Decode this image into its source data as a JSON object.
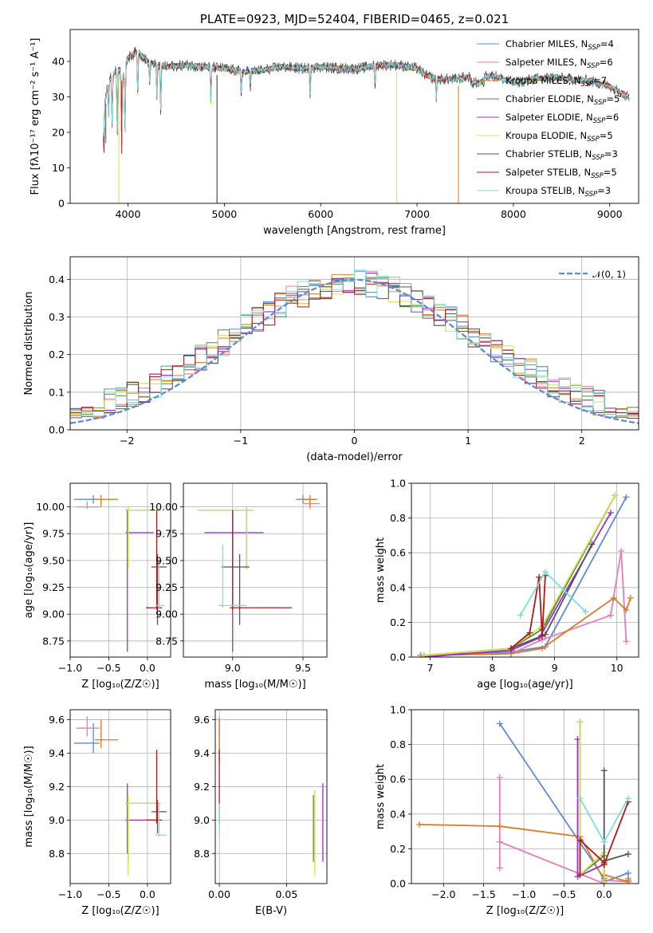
{
  "colors": {
    "chabrier_miles": "#5b8bd8",
    "salpeter_miles": "#e27fb8",
    "kroupa_miles": "#e07a20",
    "chabrier_elodie": "#4e8a3e",
    "salpeter_elodie": "#9b30c8",
    "kroupa_elodie": "#d4e04a",
    "chabrier_stelib": "#555555",
    "salpeter_stelib": "#b01818",
    "kroupa_stelib": "#7fdde0",
    "normal": "#5b8bd8"
  },
  "chart_data": [
    {
      "id": "spectrum",
      "type": "line",
      "title": "PLATE=0923, MJD=52404, FIBERID=0465, z=0.021",
      "xlabel": "wavelength [Angstrom, rest frame]",
      "ylabel": "Flux [fλ10⁻¹⁷ erg cm⁻² s⁻¹ A⁻¹]",
      "xlim": [
        3400,
        9300
      ],
      "ylim": [
        0,
        49
      ],
      "xticks": [
        "4000",
        "5000",
        "6000",
        "7000",
        "8000",
        "9000"
      ],
      "yticks": [
        "0",
        "10",
        "20",
        "30",
        "40"
      ],
      "legend_position": "top-right",
      "series": [
        {
          "name": "Chabrier MILES, N_SSP=4",
          "color_key": "chabrier_miles"
        },
        {
          "name": "Salpeter MILES, N_SSP=6",
          "color_key": "salpeter_miles"
        },
        {
          "name": "Kroupa MILES, N_SSP=7",
          "color_key": "kroupa_miles"
        },
        {
          "name": "Chabrier ELODIE, N_SSP=5",
          "color_key": "chabrier_elodie"
        },
        {
          "name": "Salpeter ELODIE, N_SSP=6",
          "color_key": "salpeter_elodie"
        },
        {
          "name": "Kroupa ELODIE, N_SSP=5",
          "color_key": "kroupa_elodie"
        },
        {
          "name": "Chabrier STELIB, N_SSP=3",
          "color_key": "chabrier_stelib"
        },
        {
          "name": "Salpeter STELIB, N_SSP=5",
          "color_key": "salpeter_stelib"
        },
        {
          "name": "Kroupa STELIB, N_SSP=3",
          "color_key": "kroupa_stelib"
        }
      ],
      "continuum_knots": {
        "x": [
          3740,
          3800,
          3900,
          3950,
          4000,
          4100,
          4200,
          4300,
          4400,
          4600,
          4800,
          5000,
          5200,
          5400,
          5600,
          5800,
          6000,
          6200,
          6400,
          6600,
          6800,
          7000,
          7100,
          7200,
          7400,
          7600,
          7800,
          8000,
          8200,
          8400,
          8600,
          8800,
          9000,
          9200
        ],
        "y": [
          25,
          35,
          38,
          36,
          41,
          43,
          40,
          39,
          38.5,
          39,
          38.5,
          38,
          37,
          37.5,
          38.5,
          38,
          38.5,
          38,
          38,
          39,
          39,
          38,
          36,
          35,
          35,
          36,
          36,
          34,
          35,
          35.5,
          35,
          34.5,
          33,
          30
        ]
      },
      "absorption_features": {
        "x": [
          3750,
          3800,
          3835,
          3889,
          3934,
          3969,
          4101,
          4226,
          4300,
          4340,
          4861,
          5175,
          5270,
          5890,
          6563,
          7200
        ],
        "depth": [
          12,
          10,
          14,
          18,
          20,
          18,
          12,
          6,
          9,
          13,
          10,
          6,
          4,
          8,
          6,
          5
        ]
      },
      "artifacts": [
        {
          "x": 3905,
          "y_min": 0,
          "color_key": "kroupa_elodie"
        },
        {
          "x": 4920,
          "y_min": 0,
          "color_key": "kroupa_stelib"
        },
        {
          "x": 4925,
          "y_min": 0,
          "color_key": "chabrier_stelib"
        },
        {
          "x": 6790,
          "y_min": 0,
          "color_key": "kroupa_elodie"
        },
        {
          "x": 7430,
          "y_min": 0,
          "color_key": "kroupa_miles"
        },
        {
          "x": 3750,
          "y_min": 19,
          "color_key": "kroupa_stelib"
        },
        {
          "x": 3770,
          "y_min": 17,
          "color_key": "chabrier_stelib"
        },
        {
          "x": 3935,
          "y_min": 14,
          "color_key": "salpeter_stelib"
        }
      ]
    },
    {
      "id": "residuals",
      "type": "histogram",
      "xlabel": "(data-model)/error",
      "ylabel": "Normed distribution",
      "xlim": [
        -2.5,
        2.5
      ],
      "ylim": [
        0,
        0.46
      ],
      "xticks": [
        "−2",
        "−1",
        "0",
        "1",
        "2"
      ],
      "yticks": [
        "0.0",
        "0.1",
        "0.2",
        "0.3",
        "0.4"
      ],
      "grid": true,
      "legend_position": "top-right",
      "normal_label": "𝒩(0, 1)",
      "bin_width": 0.1,
      "bin_start": -2.5
    },
    {
      "id": "age-vs-Z",
      "type": "errorbar",
      "xlabel": "Z [log₁₀(Z/Z☉)]",
      "ylabel": "age  [log₁₀(age/yr)]",
      "xlim": [
        -1.0,
        0.3
      ],
      "ylim": [
        8.6,
        10.22
      ],
      "xticks": [
        "−1.0",
        "−0.5",
        "0.0"
      ],
      "yticks": [
        "8.75",
        "9.00",
        "9.25",
        "9.50",
        "9.75",
        "10.00"
      ],
      "grid": true,
      "points": [
        {
          "color_key": "chabrier_miles",
          "x": -0.7,
          "x_lo": -0.95,
          "x_hi": -0.62,
          "y": 10.07,
          "y_lo": 10.03,
          "y_hi": 10.11
        },
        {
          "color_key": "salpeter_miles",
          "x": -0.78,
          "x_lo": -0.92,
          "x_hi": -0.62,
          "y": 10.0,
          "y_lo": 9.98,
          "y_hi": 10.05
        },
        {
          "color_key": "kroupa_miles",
          "x": -0.6,
          "x_lo": -0.68,
          "x_hi": -0.38,
          "y": 10.07,
          "y_lo": 10.0,
          "y_hi": 10.11
        },
        {
          "color_key": "chabrier_elodie",
          "x": -0.25,
          "x_lo": -0.28,
          "x_hi": 0.17,
          "y": 9.97,
          "y_lo": 9.42,
          "y_hi": 10.0
        },
        {
          "color_key": "salpeter_elodie",
          "x": -0.26,
          "x_lo": -0.28,
          "x_hi": 0.08,
          "y": 9.76,
          "y_lo": 8.65,
          "y_hi": 9.97
        },
        {
          "color_key": "kroupa_elodie",
          "x": -0.25,
          "x_lo": -0.27,
          "x_hi": 0.17,
          "y": 9.97,
          "y_lo": 9.42,
          "y_hi": 10.0
        },
        {
          "color_key": "chabrier_stelib",
          "x": 0.13,
          "x_lo": 0.05,
          "x_hi": 0.25,
          "y": 9.44,
          "y_lo": 8.9,
          "y_hi": 9.56
        },
        {
          "color_key": "salpeter_stelib",
          "x": 0.12,
          "x_lo": -0.02,
          "x_hi": 0.19,
          "y": 9.06,
          "y_lo": 9.04,
          "y_hi": 9.97
        },
        {
          "color_key": "kroupa_stelib",
          "x": 0.15,
          "x_lo": 0.1,
          "x_hi": 0.22,
          "y": 9.08,
          "y_lo": 9.06,
          "y_hi": 9.52
        }
      ]
    },
    {
      "id": "age-vs-mass",
      "type": "errorbar",
      "xlabel": "mass [log₁₀(M/M☉)]",
      "xlim": [
        8.65,
        9.67
      ],
      "ylim": [
        8.6,
        10.22
      ],
      "xticks": [
        "9.0",
        "9.5"
      ],
      "yticks": [
        "8.75",
        "9.00",
        "9.25",
        "9.50",
        "9.75",
        "10.00"
      ],
      "grid": true,
      "points": [
        {
          "color_key": "chabrier_miles",
          "x": 9.5,
          "x_lo": 9.45,
          "x_hi": 9.6,
          "y": 10.07,
          "y_lo": 10.03,
          "y_hi": 10.11
        },
        {
          "color_key": "salpeter_miles",
          "x": 9.55,
          "x_lo": 9.5,
          "x_hi": 9.62,
          "y": 10.03,
          "y_lo": 9.98,
          "y_hi": 10.08
        },
        {
          "color_key": "kroupa_miles",
          "x": 9.55,
          "x_lo": 9.5,
          "x_hi": 9.6,
          "y": 10.07,
          "y_lo": 10.0,
          "y_hi": 10.11
        },
        {
          "color_key": "chabrier_elodie",
          "x": 9.1,
          "x_lo": 8.75,
          "x_hi": 9.15,
          "y": 9.97,
          "y_lo": 9.42,
          "y_hi": 10.0
        },
        {
          "color_key": "salpeter_elodie",
          "x": 9.0,
          "x_lo": 8.8,
          "x_hi": 9.22,
          "y": 9.76,
          "y_lo": 8.65,
          "y_hi": 9.97
        },
        {
          "color_key": "kroupa_elodie",
          "x": 9.1,
          "x_lo": 8.75,
          "x_hi": 9.15,
          "y": 9.97,
          "y_lo": 9.42,
          "y_hi": 10.0
        },
        {
          "color_key": "chabrier_stelib",
          "x": 9.05,
          "x_lo": 8.92,
          "x_hi": 9.12,
          "y": 9.44,
          "y_lo": 8.9,
          "y_hi": 9.56
        },
        {
          "color_key": "salpeter_stelib",
          "x": 9.0,
          "x_lo": 8.98,
          "x_hi": 9.42,
          "y": 9.06,
          "y_lo": 9.04,
          "y_hi": 9.97
        },
        {
          "color_key": "kroupa_stelib",
          "x": 8.93,
          "x_lo": 8.9,
          "x_hi": 9.1,
          "y": 9.08,
          "y_lo": 9.06,
          "y_hi": 9.65
        }
      ]
    },
    {
      "id": "weight-vs-age",
      "type": "line",
      "xlabel": "age  [log₁₀(age/yr)]",
      "ylabel": "mass weight",
      "xlim": [
        6.7,
        10.35
      ],
      "ylim": [
        0,
        1
      ],
      "xticks": [
        "7",
        "8",
        "9",
        "10"
      ],
      "yticks": [
        "0.0",
        "0.2",
        "0.4",
        "0.6",
        "0.8",
        "1.0"
      ],
      "grid": true,
      "series": [
        {
          "color_key": "chabrier_miles",
          "x": [
            6.85,
            8.3,
            8.85,
            10.15
          ],
          "y": [
            0.01,
            0.03,
            0.06,
            0.92
          ]
        },
        {
          "color_key": "salpeter_miles",
          "x": [
            6.9,
            8.3,
            8.8,
            9.9,
            10.07,
            10.15
          ],
          "y": [
            0.01,
            0.02,
            0.1,
            0.24,
            0.61,
            0.09
          ]
        },
        {
          "color_key": "kroupa_miles",
          "x": [
            6.85,
            8.3,
            8.8,
            9.95,
            10.15,
            10.22
          ],
          "y": [
            0.01,
            0.02,
            0.05,
            0.34,
            0.27,
            0.34
          ]
        },
        {
          "color_key": "chabrier_elodie",
          "x": [
            6.9,
            8.3,
            8.8,
            9.97
          ],
          "y": [
            0.01,
            0.05,
            0.16,
            0.93
          ]
        },
        {
          "color_key": "salpeter_elodie",
          "x": [
            6.9,
            8.3,
            8.75,
            9.9
          ],
          "y": [
            0.0,
            0.04,
            0.11,
            0.83
          ]
        },
        {
          "color_key": "kroupa_elodie",
          "x": [
            6.9,
            8.3,
            8.8,
            9.97
          ],
          "y": [
            0.01,
            0.05,
            0.18,
            0.93
          ]
        },
        {
          "color_key": "chabrier_stelib",
          "x": [
            8.3,
            8.85,
            9.6
          ],
          "y": [
            0.05,
            0.13,
            0.65
          ]
        },
        {
          "color_key": "salpeter_stelib",
          "x": [
            8.3,
            8.6,
            8.75,
            8.8,
            8.85
          ],
          "y": [
            0.05,
            0.14,
            0.46,
            0.12,
            0.47
          ]
        },
        {
          "color_key": "kroupa_stelib",
          "x": [
            8.45,
            8.85,
            9.5
          ],
          "y": [
            0.24,
            0.49,
            0.26
          ]
        }
      ]
    },
    {
      "id": "mass-vs-Z",
      "type": "errorbar",
      "xlabel": "Z [log₁₀(Z/Z☉)]",
      "ylabel": "mass [log₁₀(M/M☉)]",
      "xlim": [
        -1.0,
        0.3
      ],
      "ylim": [
        8.62,
        9.66
      ],
      "xticks": [
        "−1.0",
        "−0.5",
        "0.0"
      ],
      "yticks": [
        "8.8",
        "9.0",
        "9.2",
        "9.4",
        "9.6"
      ],
      "grid": true,
      "points": [
        {
          "color_key": "chabrier_miles",
          "x": -0.7,
          "x_lo": -0.95,
          "x_hi": -0.62,
          "y": 9.46,
          "y_lo": 9.4,
          "y_hi": 9.58
        },
        {
          "color_key": "salpeter_miles",
          "x": -0.78,
          "x_lo": -0.92,
          "x_hi": -0.62,
          "y": 9.55,
          "y_lo": 9.5,
          "y_hi": 9.62
        },
        {
          "color_key": "kroupa_miles",
          "x": -0.6,
          "x_lo": -0.68,
          "x_hi": -0.38,
          "y": 9.48,
          "y_lo": 9.43,
          "y_hi": 9.6
        },
        {
          "color_key": "chabrier_elodie",
          "x": -0.25,
          "x_lo": -0.28,
          "x_hi": 0.17,
          "y": 9.1,
          "y_lo": 8.75,
          "y_hi": 9.15
        },
        {
          "color_key": "salpeter_elodie",
          "x": -0.26,
          "x_lo": -0.28,
          "x_hi": 0.08,
          "y": 9.0,
          "y_lo": 8.8,
          "y_hi": 9.22
        },
        {
          "color_key": "kroupa_elodie",
          "x": -0.25,
          "x_lo": -0.27,
          "x_hi": 0.17,
          "y": 9.1,
          "y_lo": 8.67,
          "y_hi": 9.15
        },
        {
          "color_key": "chabrier_stelib",
          "x": 0.13,
          "x_lo": 0.05,
          "x_hi": 0.25,
          "y": 9.05,
          "y_lo": 8.92,
          "y_hi": 9.12
        },
        {
          "color_key": "salpeter_stelib",
          "x": 0.12,
          "x_lo": -0.02,
          "x_hi": 0.19,
          "y": 9.0,
          "y_lo": 8.98,
          "y_hi": 9.42
        },
        {
          "color_key": "kroupa_stelib",
          "x": 0.15,
          "x_lo": 0.1,
          "x_hi": 0.25,
          "y": 8.91,
          "y_lo": 8.9,
          "y_hi": 9.1
        }
      ]
    },
    {
      "id": "mass-vs-ebv",
      "type": "errorbar",
      "xlabel": "E(B-V)",
      "xlim": [
        -0.003,
        0.08
      ],
      "ylim": [
        8.62,
        9.66
      ],
      "xticks": [
        "0.00",
        "0.05"
      ],
      "yticks": [
        "8.8",
        "9.0",
        "9.2",
        "9.4",
        "9.6"
      ],
      "grid": true,
      "points": [
        {
          "color_key": "chabrier_miles",
          "x": 0.0,
          "y": 9.46,
          "y_lo": 9.4,
          "y_hi": 9.58
        },
        {
          "color_key": "salpeter_miles",
          "x": 0.0,
          "y": 9.55,
          "y_lo": 9.5,
          "y_hi": 9.62
        },
        {
          "color_key": "kroupa_miles",
          "x": 0.0,
          "y": 9.48,
          "y_lo": 9.35,
          "y_hi": 9.61
        },
        {
          "color_key": "salpeter_stelib",
          "x": 0.0,
          "y": 9.0,
          "y_lo": 8.98,
          "y_hi": 9.42
        },
        {
          "color_key": "kroupa_stelib",
          "x": 0.0,
          "y": 9.0,
          "y_lo": 8.9,
          "y_hi": 9.1
        },
        {
          "color_key": "chabrier_elodie",
          "x": 0.07,
          "y": 9.1,
          "y_lo": 8.75,
          "y_hi": 9.15
        },
        {
          "color_key": "kroupa_elodie",
          "x": 0.071,
          "y": 9.1,
          "y_lo": 8.67,
          "y_hi": 9.18
        },
        {
          "color_key": "salpeter_elodie",
          "x": 0.077,
          "y": 9.0,
          "y_lo": 8.75,
          "y_hi": 9.22
        }
      ]
    },
    {
      "id": "weight-vs-Z",
      "type": "line",
      "xlabel": "Z [log₁₀(Z/Z☉)]",
      "ylabel": "mass weight",
      "xlim": [
        -2.4,
        0.43
      ],
      "ylim": [
        0,
        1
      ],
      "xticks": [
        "−2.0",
        "−1.5",
        "−1.0",
        "−0.5",
        "0.0"
      ],
      "yticks": [
        "0.0",
        "0.2",
        "0.4",
        "0.6",
        "0.8",
        "1.0"
      ],
      "grid": true,
      "series": [
        {
          "color_key": "chabrier_miles",
          "x": [
            -1.3,
            0.0,
            0.0,
            0.3,
            0.3
          ],
          "y": [
            0.92,
            0.03,
            0.01,
            0.06,
            0.02
          ]
        },
        {
          "color_key": "salpeter_miles",
          "x": [
            -1.3,
            -1.3,
            -1.3,
            0.0,
            0.0,
            0.3,
            0.3
          ],
          "y": [
            0.61,
            0.09,
            0.24,
            0.0,
            0.02,
            0.01,
            0.03
          ]
        },
        {
          "color_key": "kroupa_miles",
          "x": [
            -2.3,
            -1.3,
            -0.3,
            0.0,
            0.0,
            0.3,
            0.3
          ],
          "y": [
            0.34,
            0.33,
            0.27,
            0.02,
            0.05,
            0.01,
            0.02
          ]
        },
        {
          "color_key": "chabrier_elodie",
          "x": [
            -0.3,
            -0.3,
            0.0,
            0.0
          ],
          "y": [
            0.93,
            0.05,
            0.16,
            0.01
          ]
        },
        {
          "color_key": "salpeter_elodie",
          "x": [
            -0.33,
            -0.33,
            0.0,
            0.0
          ],
          "y": [
            0.83,
            0.04,
            0.11,
            0.0
          ]
        },
        {
          "color_key": "kroupa_elodie",
          "x": [
            -0.3,
            -0.3,
            0.0,
            0.0
          ],
          "y": [
            0.93,
            0.05,
            0.18,
            0.01
          ]
        },
        {
          "color_key": "chabrier_stelib",
          "x": [
            0.0,
            0.0,
            0.3
          ],
          "y": [
            0.65,
            0.13,
            0.17
          ]
        },
        {
          "color_key": "salpeter_stelib",
          "x": [
            -0.3,
            -0.3,
            0.0,
            0.0,
            0.3
          ],
          "y": [
            0.05,
            0.25,
            0.12,
            0.11,
            0.47
          ]
        },
        {
          "color_key": "kroupa_stelib",
          "x": [
            -0.3,
            0.0,
            0.3
          ],
          "y": [
            0.49,
            0.24,
            0.49
          ]
        }
      ]
    }
  ]
}
